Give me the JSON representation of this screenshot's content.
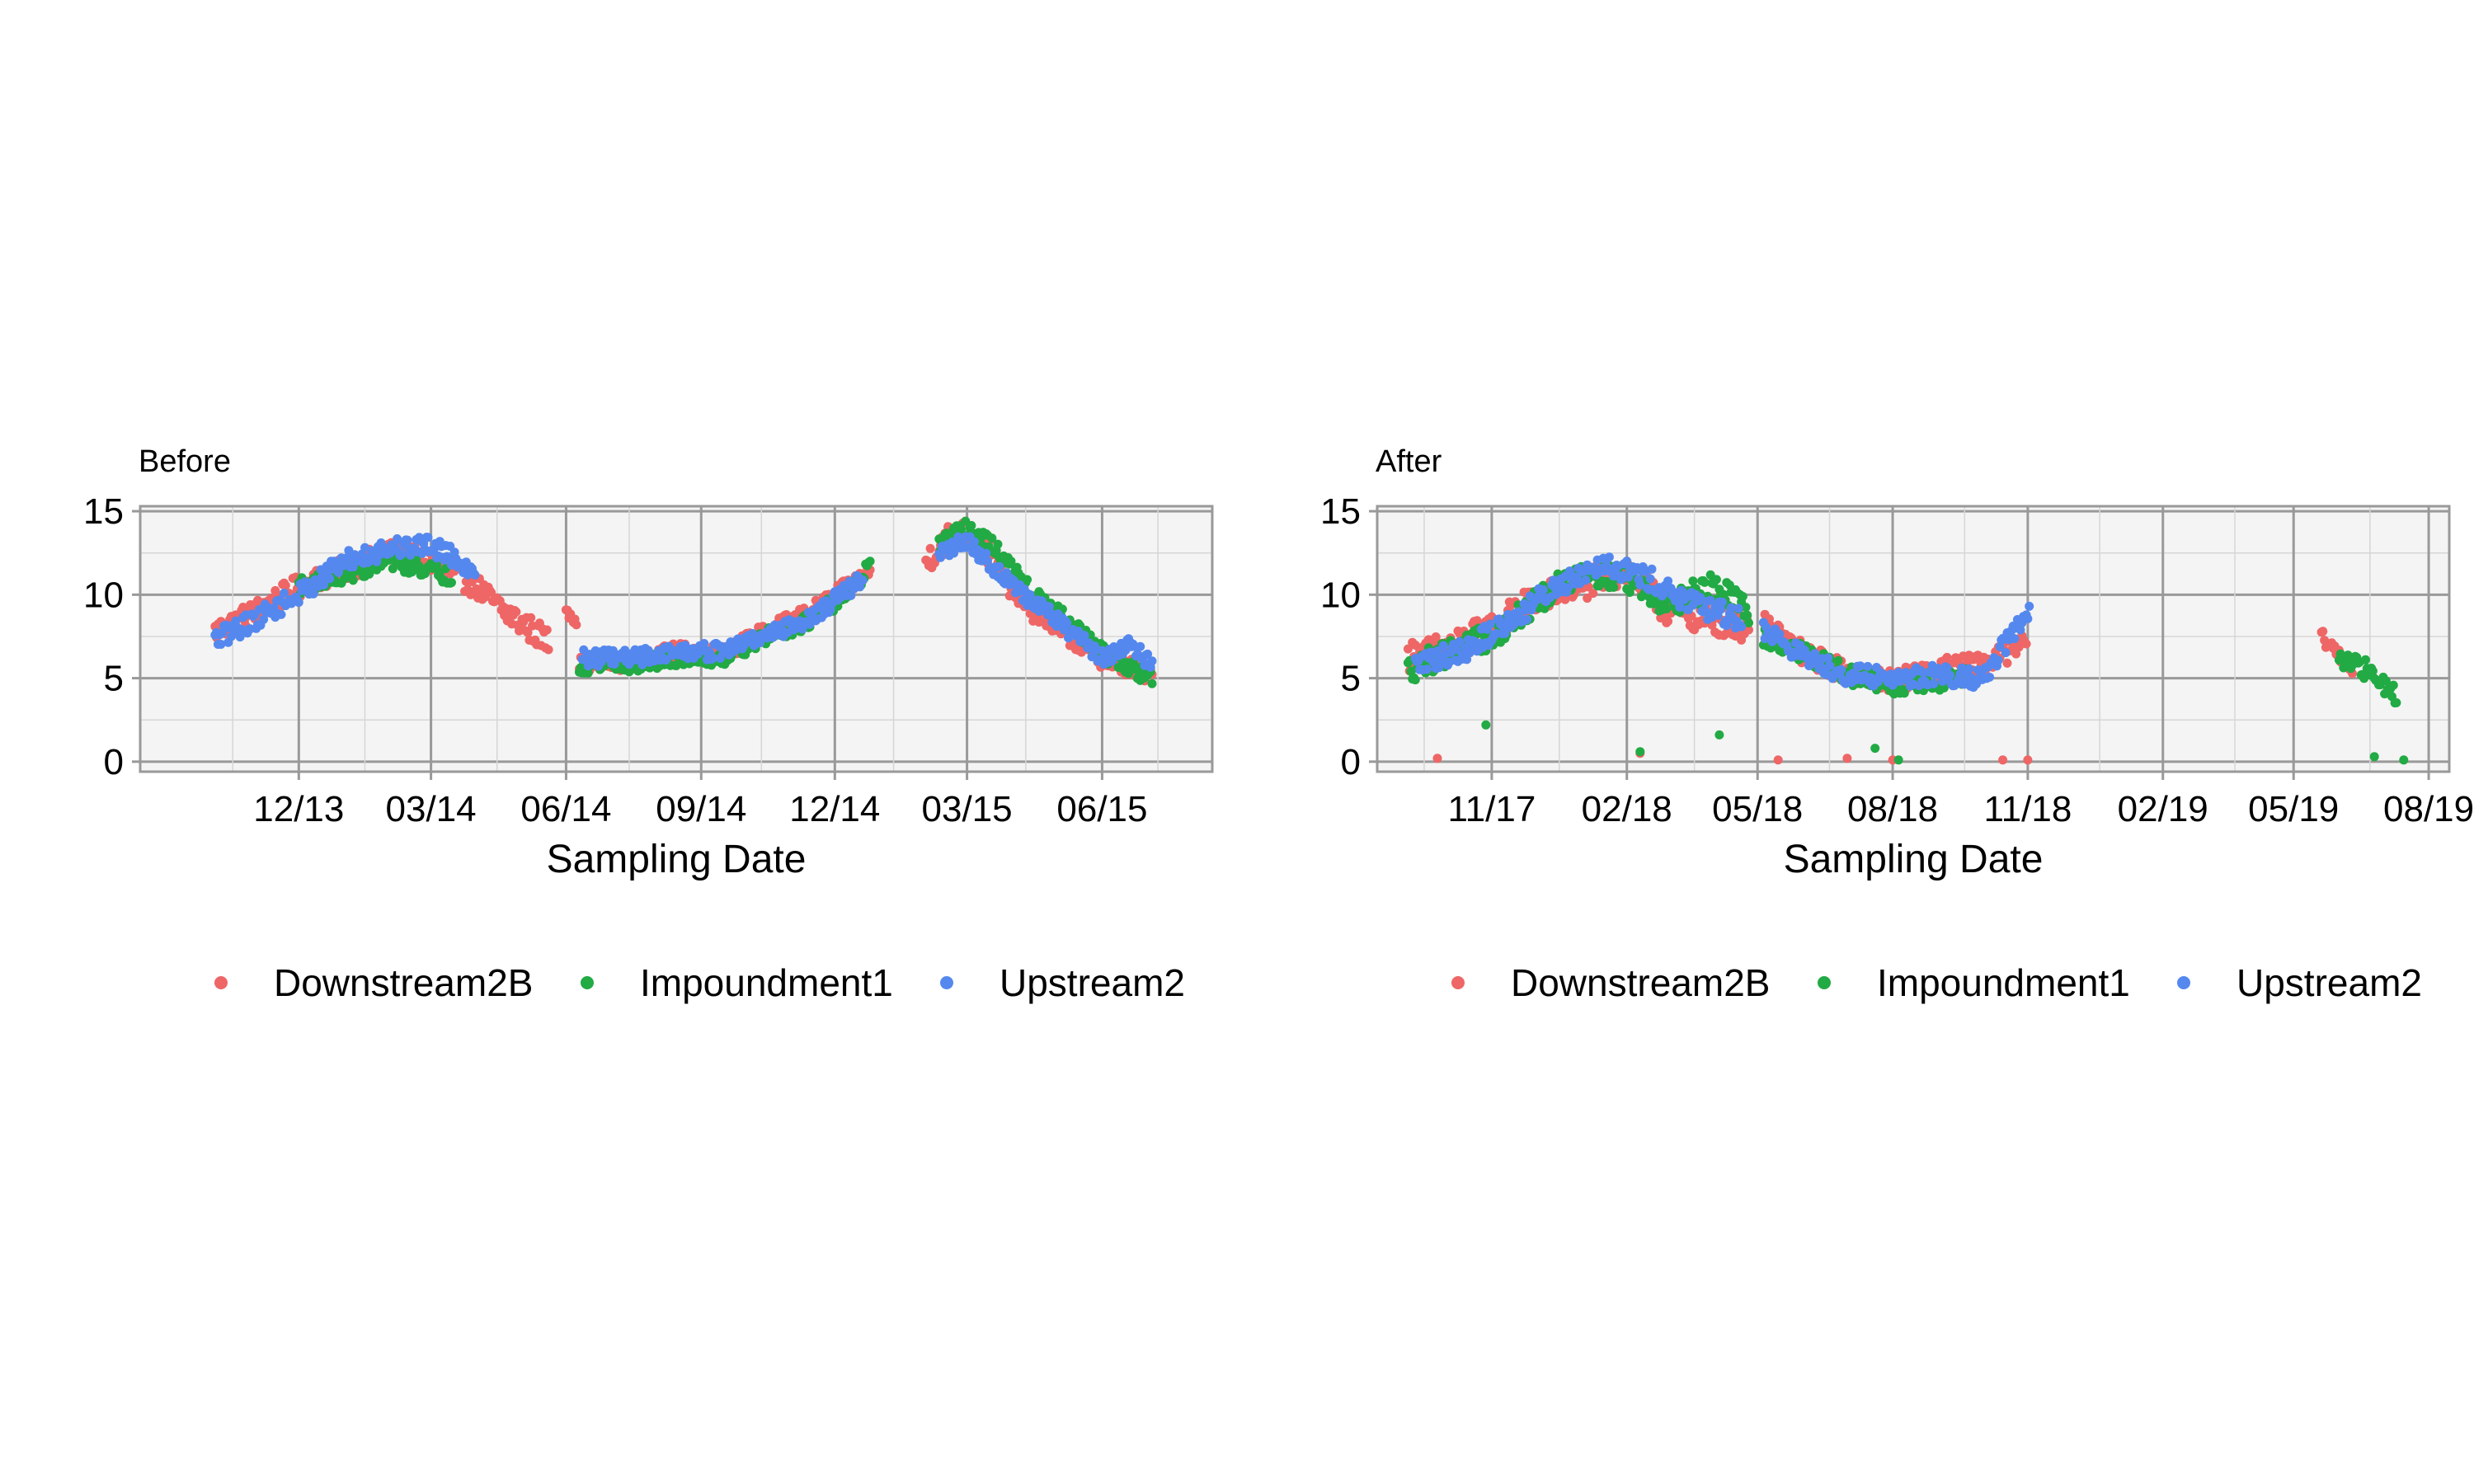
{
  "chart_data": [
    {
      "type": "scatter",
      "title": "Before",
      "xlabel": "Sampling Date",
      "ylabel": "",
      "x_axis_type": "date",
      "xlim": [
        "2013-08-15",
        "2015-08-15"
      ],
      "ylim": [
        -0.6,
        15.3
      ],
      "x_ticks": [
        {
          "label": "12/13",
          "date": "2013-12-01"
        },
        {
          "label": "03/14",
          "date": "2014-03-01"
        },
        {
          "label": "06/14",
          "date": "2014-06-01"
        },
        {
          "label": "09/14",
          "date": "2014-09-01"
        },
        {
          "label": "12/14",
          "date": "2014-12-01"
        },
        {
          "label": "03/15",
          "date": "2015-03-01"
        },
        {
          "label": "06/15",
          "date": "2015-06-01"
        }
      ],
      "y_ticks": [
        0,
        5,
        10,
        15
      ],
      "grid": true,
      "panel_background": "#f4f4f4",
      "legend_position": "bottom",
      "series": [
        {
          "name": "Downstream2B",
          "color": "#ee6666",
          "segments": [
            {
              "start": "2013-10-05",
              "end": "2014-04-20",
              "keys": [
                [
                  "2013-10-05",
                  7.8
                ],
                [
                  "2013-11-01",
                  9.0
                ],
                [
                  "2013-12-01",
                  10.5
                ],
                [
                  "2014-01-01",
                  11.5
                ],
                [
                  "2014-02-01",
                  12.5
                ],
                [
                  "2014-03-01",
                  12.0
                ],
                [
                  "2014-04-01",
                  10.5
                ],
                [
                  "2014-04-20",
                  9.0
                ]
              ],
              "spread": 0.7
            },
            {
              "start": "2014-04-20",
              "end": "2014-05-20",
              "keys": [
                [
                  "2014-04-20",
                  9.0
                ],
                [
                  "2014-05-20",
                  7.2
                ]
              ],
              "spread": 0.8
            },
            {
              "start": "2014-06-01",
              "end": "2014-06-08",
              "keys": [
                [
                  "2014-06-01",
                  9.2
                ],
                [
                  "2014-06-08",
                  8.5
                ]
              ],
              "spread": 0.4
            },
            {
              "start": "2014-06-10",
              "end": "2014-12-25",
              "keys": [
                [
                  "2014-06-10",
                  5.8
                ],
                [
                  "2014-07-15",
                  6.0
                ],
                [
                  "2014-08-15",
                  6.6
                ],
                [
                  "2014-09-15",
                  6.5
                ],
                [
                  "2014-10-15",
                  7.8
                ],
                [
                  "2014-11-15",
                  9.0
                ],
                [
                  "2014-12-15",
                  10.8
                ],
                [
                  "2014-12-25",
                  11.4
                ]
              ],
              "spread": 0.5
            },
            {
              "start": "2015-02-01",
              "end": "2015-03-25",
              "keys": [
                [
                  "2015-02-01",
                  12.0
                ],
                [
                  "2015-02-20",
                  13.8
                ],
                [
                  "2015-03-10",
                  13.2
                ],
                [
                  "2015-03-25",
                  11.2
                ]
              ],
              "spread": 0.8
            },
            {
              "start": "2015-03-25",
              "end": "2015-07-05",
              "keys": [
                [
                  "2015-03-25",
                  11.0
                ],
                [
                  "2015-04-15",
                  9.0
                ],
                [
                  "2015-05-10",
                  7.5
                ],
                [
                  "2015-06-01",
                  6.2
                ],
                [
                  "2015-07-05",
                  5.2
                ]
              ],
              "spread": 0.6
            }
          ],
          "points": [
            [
              8.2,
              "2013-10-10"
            ]
          ]
        },
        {
          "name": "Impoundment1",
          "color": "#22aa44",
          "segments": [
            {
              "start": "2013-12-01",
              "end": "2014-03-15",
              "keys": [
                [
                  "2013-12-01",
                  10.5
                ],
                [
                  "2014-01-01",
                  11.2
                ],
                [
                  "2014-02-01",
                  12.0
                ],
                [
                  "2014-03-01",
                  11.5
                ],
                [
                  "2014-03-15",
                  11.0
                ]
              ],
              "spread": 0.5
            },
            {
              "start": "2014-06-10",
              "end": "2014-12-25",
              "keys": [
                [
                  "2014-06-10",
                  5.8
                ],
                [
                  "2014-07-15",
                  5.8
                ],
                [
                  "2014-08-15",
                  6.2
                ],
                [
                  "2014-09-15",
                  6.2
                ],
                [
                  "2014-10-15",
                  7.5
                ],
                [
                  "2014-11-15",
                  8.5
                ],
                [
                  "2014-12-15",
                  10.5
                ],
                [
                  "2014-12-25",
                  11.8
                ]
              ],
              "spread": 0.5
            },
            {
              "start": "2015-02-10",
              "end": "2015-07-05",
              "keys": [
                [
                  "2015-02-10",
                  13.0
                ],
                [
                  "2015-03-01",
                  14.0
                ],
                [
                  "2015-03-20",
                  12.8
                ],
                [
                  "2015-04-15",
                  10.0
                ],
                [
                  "2015-05-10",
                  8.3
                ],
                [
                  "2015-06-01",
                  6.5
                ],
                [
                  "2015-07-05",
                  5.0
                ]
              ],
              "spread": 0.5
            }
          ]
        },
        {
          "name": "Upstream2",
          "color": "#5588ee",
          "segments": [
            {
              "start": "2013-10-05",
              "end": "2014-03-31",
              "keys": [
                [
                  "2013-10-05",
                  7.3
                ],
                [
                  "2013-11-01",
                  8.5
                ],
                [
                  "2013-12-01",
                  10.0
                ],
                [
                  "2014-01-01",
                  12.0
                ],
                [
                  "2014-02-01",
                  12.8
                ],
                [
                  "2014-03-01",
                  13.0
                ],
                [
                  "2014-03-31",
                  11.5
                ]
              ],
              "spread": 0.6
            },
            {
              "start": "2014-06-12",
              "end": "2014-12-20",
              "keys": [
                [
                  "2014-06-12",
                  6.2
                ],
                [
                  "2014-07-15",
                  6.2
                ],
                [
                  "2014-08-15",
                  6.6
                ],
                [
                  "2014-09-15",
                  6.6
                ],
                [
                  "2014-10-15",
                  7.6
                ],
                [
                  "2014-11-15",
                  8.6
                ],
                [
                  "2014-12-20",
                  11.0
                ]
              ],
              "spread": 0.5
            },
            {
              "start": "2015-02-10",
              "end": "2015-07-05",
              "keys": [
                [
                  "2015-02-10",
                  12.5
                ],
                [
                  "2015-03-01",
                  13.2
                ],
                [
                  "2015-04-01",
                  10.5
                ],
                [
                  "2015-05-01",
                  8.5
                ],
                [
                  "2015-06-01",
                  6.2
                ],
                [
                  "2015-06-20",
                  7.0
                ],
                [
                  "2015-07-05",
                  5.8
                ]
              ],
              "spread": 0.5
            }
          ]
        }
      ]
    },
    {
      "type": "scatter",
      "title": "After",
      "xlabel": "Sampling Date",
      "ylabel": "",
      "x_axis_type": "date",
      "xlim": [
        "2017-08-15",
        "2019-08-15"
      ],
      "ylim": [
        -0.6,
        15.3
      ],
      "x_ticks": [
        {
          "label": "11/17",
          "date": "2017-11-01"
        },
        {
          "label": "02/18",
          "date": "2018-02-01"
        },
        {
          "label": "05/18",
          "date": "2018-05-01"
        },
        {
          "label": "08/18",
          "date": "2018-08-01"
        },
        {
          "label": "11/18",
          "date": "2018-11-01"
        },
        {
          "label": "02/19",
          "date": "2019-02-01"
        },
        {
          "label": "05/19",
          "date": "2019-05-01"
        },
        {
          "label": "08/19",
          "date": "2019-08-01"
        }
      ],
      "y_ticks": [
        0,
        5,
        10,
        15
      ],
      "grid": true,
      "panel_background": "#f4f4f4",
      "legend_position": "bottom",
      "series": [
        {
          "name": "Downstream2B",
          "color": "#ee6666",
          "segments": [
            {
              "start": "2017-09-05",
              "end": "2018-04-25",
              "keys": [
                [
                  "2017-09-05",
                  6.3
                ],
                [
                  "2017-10-01",
                  6.8
                ],
                [
                  "2017-11-01",
                  8.0
                ],
                [
                  "2017-12-01",
                  9.8
                ],
                [
                  "2018-01-01",
                  10.5
                ],
                [
                  "2018-02-01",
                  11.5
                ],
                [
                  "2018-03-01",
                  9.0
                ],
                [
                  "2018-04-01",
                  8.5
                ],
                [
                  "2018-04-25",
                  8.0
                ]
              ],
              "spread": 0.9
            },
            {
              "start": "2018-05-05",
              "end": "2018-10-31",
              "keys": [
                [
                  "2018-05-05",
                  8.2
                ],
                [
                  "2018-06-01",
                  6.5
                ],
                [
                  "2018-07-01",
                  5.3
                ],
                [
                  "2018-08-01",
                  4.8
                ],
                [
                  "2018-09-01",
                  5.5
                ],
                [
                  "2018-10-01",
                  5.8
                ],
                [
                  "2018-10-31",
                  7.2
                ]
              ],
              "spread": 0.7
            },
            {
              "start": "2019-05-20",
              "end": "2019-06-10",
              "keys": [
                [
                  "2019-05-20",
                  7.5
                ],
                [
                  "2019-06-10",
                  5.6
                ]
              ],
              "spread": 0.4
            }
          ],
          "points": [
            [
              0.2,
              "2017-09-25"
            ],
            [
              0.5,
              "2018-02-10"
            ],
            [
              0.1,
              "2018-05-15"
            ],
            [
              0.2,
              "2018-07-01"
            ],
            [
              0.1,
              "2018-08-01"
            ],
            [
              0.1,
              "2018-10-15"
            ],
            [
              0.1,
              "2018-11-01"
            ]
          ]
        },
        {
          "name": "Impoundment1",
          "color": "#22aa44",
          "segments": [
            {
              "start": "2017-09-05",
              "end": "2018-04-25",
              "keys": [
                [
                  "2017-09-05",
                  5.5
                ],
                [
                  "2017-10-01",
                  6.5
                ],
                [
                  "2017-11-01",
                  7.5
                ],
                [
                  "2017-12-01",
                  9.5
                ],
                [
                  "2018-01-01",
                  11.5
                ],
                [
                  "2018-02-01",
                  11.0
                ],
                [
                  "2018-03-01",
                  9.5
                ],
                [
                  "2018-04-01",
                  10.5
                ],
                [
                  "2018-04-25",
                  9.0
                ]
              ],
              "spread": 0.8
            },
            {
              "start": "2018-05-05",
              "end": "2018-09-20",
              "keys": [
                [
                  "2018-05-05",
                  7.5
                ],
                [
                  "2018-06-01",
                  6.5
                ],
                [
                  "2018-07-01",
                  5.2
                ],
                [
                  "2018-08-01",
                  4.6
                ],
                [
                  "2018-09-20",
                  5.0
                ]
              ],
              "spread": 0.6
            },
            {
              "start": "2019-06-01",
              "end": "2019-07-10",
              "keys": [
                [
                  "2019-06-01",
                  6.0
                ],
                [
                  "2019-06-20",
                  5.5
                ],
                [
                  "2019-07-10",
                  4.0
                ]
              ],
              "spread": 0.6
            }
          ],
          "points": [
            [
              2.2,
              "2017-10-28"
            ],
            [
              0.6,
              "2018-02-10"
            ],
            [
              1.6,
              "2018-04-05"
            ],
            [
              0.8,
              "2018-07-20"
            ],
            [
              0.1,
              "2018-08-05"
            ],
            [
              0.3,
              "2019-06-25"
            ],
            [
              0.1,
              "2019-07-15"
            ]
          ]
        },
        {
          "name": "Upstream2",
          "color": "#5588ee",
          "segments": [
            {
              "start": "2017-09-10",
              "end": "2018-04-20",
              "keys": [
                [
                  "2017-09-10",
                  5.8
                ],
                [
                  "2017-10-15",
                  6.8
                ],
                [
                  "2017-11-15",
                  8.5
                ],
                [
                  "2017-12-15",
                  10.5
                ],
                [
                  "2018-01-15",
                  12.0
                ],
                [
                  "2018-02-15",
                  11.0
                ],
                [
                  "2018-03-15",
                  9.5
                ],
                [
                  "2018-04-20",
                  8.5
                ]
              ],
              "spread": 0.7
            },
            {
              "start": "2018-05-05",
              "end": "2018-11-02",
              "keys": [
                [
                  "2018-05-05",
                  8.0
                ],
                [
                  "2018-06-01",
                  6.3
                ],
                [
                  "2018-07-01",
                  5.2
                ],
                [
                  "2018-08-01",
                  5.0
                ],
                [
                  "2018-09-01",
                  5.2
                ],
                [
                  "2018-10-01",
                  5.0
                ],
                [
                  "2018-10-20",
                  7.5
                ],
                [
                  "2018-11-02",
                  8.8
                ]
              ],
              "spread": 0.6
            }
          ]
        }
      ]
    }
  ],
  "legend": {
    "items": [
      {
        "label": "Downstream2B",
        "color": "#ee6666"
      },
      {
        "label": "Impoundment1",
        "color": "#22aa44"
      },
      {
        "label": "Upstream2",
        "color": "#5588ee"
      }
    ]
  }
}
